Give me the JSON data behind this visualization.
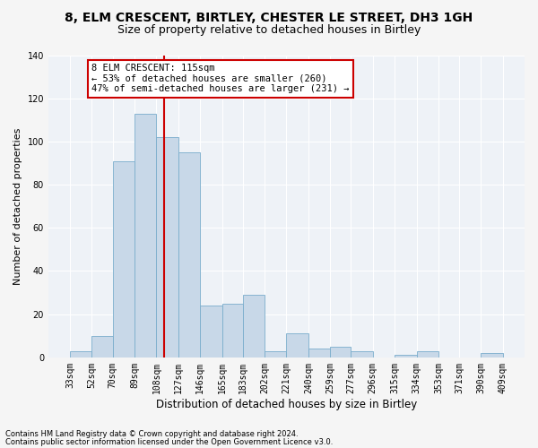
{
  "title1": "8, ELM CRESCENT, BIRTLEY, CHESTER LE STREET, DH3 1GH",
  "title2": "Size of property relative to detached houses in Birtley",
  "xlabel": "Distribution of detached houses by size in Birtley",
  "ylabel": "Number of detached properties",
  "footnote1": "Contains HM Land Registry data © Crown copyright and database right 2024.",
  "footnote2": "Contains public sector information licensed under the Open Government Licence v3.0.",
  "annotation_title": "8 ELM CRESCENT: 115sqm",
  "annotation_line1": "← 53% of detached houses are smaller (260)",
  "annotation_line2": "47% of semi-detached houses are larger (231) →",
  "property_size": 115,
  "bin_edges": [
    33,
    52,
    70,
    89,
    108,
    127,
    146,
    165,
    183,
    202,
    221,
    240,
    259,
    277,
    296,
    315,
    334,
    353,
    371,
    390,
    409
  ],
  "bar_heights": [
    3,
    10,
    91,
    113,
    102,
    95,
    24,
    25,
    29,
    3,
    11,
    4,
    5,
    3,
    0,
    1,
    3,
    0,
    0,
    2
  ],
  "bar_color": "#c8d8e8",
  "bar_edge_color": "#7aadcc",
  "vline_x": 115,
  "vline_color": "#cc0000",
  "annotation_box_color": "#cc0000",
  "ylim": [
    0,
    140
  ],
  "yticks": [
    0,
    20,
    40,
    60,
    80,
    100,
    120,
    140
  ],
  "bg_color": "#eef2f7",
  "grid_color": "#ffffff",
  "title1_fontsize": 10,
  "title2_fontsize": 9,
  "xlabel_fontsize": 8.5,
  "ylabel_fontsize": 8,
  "tick_fontsize": 7,
  "annot_fontsize": 7.5
}
